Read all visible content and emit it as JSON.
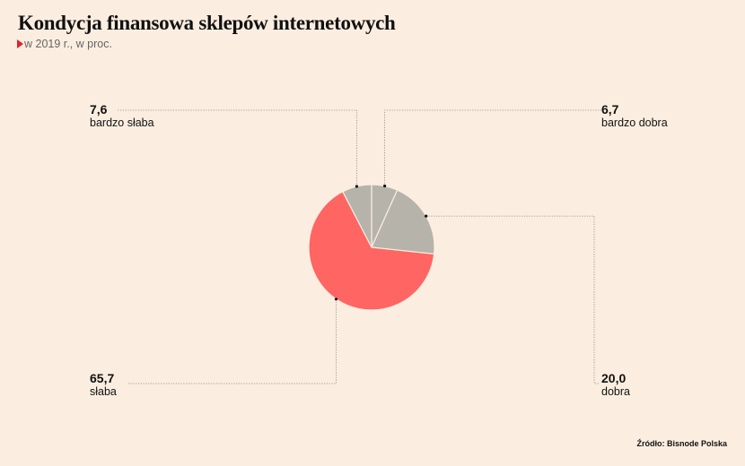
{
  "header": {
    "title": "Kondycja finansowa sklepów internetowych",
    "subtitle": "w 2019 r., w proc."
  },
  "source": "Źródło: Bisnode Polska",
  "colors": {
    "highlight": "#ff6563",
    "neutral": "#b6b3ab",
    "accent_marker": "#e5202a",
    "background": "#fbeee0"
  },
  "chart_data": {
    "type": "pie",
    "title": "Kondycja finansowa sklepów internetowych",
    "subtitle": "w 2019 r., w proc.",
    "slices": [
      {
        "label": "bardzo dobra",
        "value_text": "6,7",
        "value": 6.7,
        "color": "#b6b3ab"
      },
      {
        "label": "dobra",
        "value_text": "20,0",
        "value": 20.0,
        "color": "#b6b3ab"
      },
      {
        "label": "słaba",
        "value_text": "65,7",
        "value": 65.7,
        "color": "#ff6563"
      },
      {
        "label": "bardzo słaba",
        "value_text": "7,6",
        "value": 7.6,
        "color": "#b6b3ab"
      }
    ]
  }
}
